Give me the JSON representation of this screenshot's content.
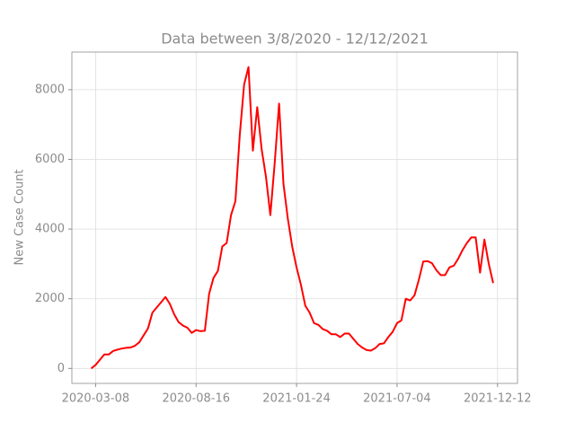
{
  "chart_data": {
    "type": "line",
    "title": "Data between 3/8/2020 - 12/12/2021",
    "y_label": "New Case Count",
    "x": [
      "2020-03-01",
      "2020-03-08",
      "2020-03-15",
      "2020-03-22",
      "2020-03-29",
      "2020-04-05",
      "2020-04-12",
      "2020-04-19",
      "2020-04-26",
      "2020-05-03",
      "2020-05-10",
      "2020-05-17",
      "2020-05-24",
      "2020-05-31",
      "2020-06-07",
      "2020-06-14",
      "2020-06-21",
      "2020-06-28",
      "2020-07-05",
      "2020-07-12",
      "2020-07-19",
      "2020-07-26",
      "2020-08-02",
      "2020-08-09",
      "2020-08-16",
      "2020-08-23",
      "2020-08-30",
      "2020-09-06",
      "2020-09-13",
      "2020-09-20",
      "2020-09-27",
      "2020-10-04",
      "2020-10-11",
      "2020-10-18",
      "2020-10-25",
      "2020-11-01",
      "2020-11-08",
      "2020-11-15",
      "2020-11-22",
      "2020-11-29",
      "2020-12-06",
      "2020-12-13",
      "2020-12-20",
      "2020-12-27",
      "2021-01-03",
      "2021-01-10",
      "2021-01-17",
      "2021-01-24",
      "2021-01-31",
      "2021-02-07",
      "2021-02-14",
      "2021-02-21",
      "2021-02-28",
      "2021-03-07",
      "2021-03-14",
      "2021-03-21",
      "2021-03-28",
      "2021-04-04",
      "2021-04-11",
      "2021-04-18",
      "2021-04-25",
      "2021-05-02",
      "2021-05-09",
      "2021-05-16",
      "2021-05-23",
      "2021-05-30",
      "2021-06-06",
      "2021-06-13",
      "2021-06-20",
      "2021-06-27",
      "2021-07-04",
      "2021-07-11",
      "2021-07-18",
      "2021-07-25",
      "2021-08-01",
      "2021-08-08",
      "2021-08-15",
      "2021-08-22",
      "2021-08-29",
      "2021-09-05",
      "2021-09-12",
      "2021-09-19",
      "2021-09-26",
      "2021-10-03",
      "2021-10-10",
      "2021-10-17",
      "2021-10-24",
      "2021-10-31",
      "2021-11-07",
      "2021-11-14",
      "2021-11-21",
      "2021-11-28",
      "2021-12-05"
    ],
    "series": [
      {
        "name": "New Case Count",
        "color": "#ff0000",
        "values": [
          0,
          100,
          250,
          400,
          400,
          500,
          540,
          570,
          590,
          600,
          650,
          750,
          950,
          1150,
          1600,
          1750,
          1900,
          2050,
          1850,
          1550,
          1330,
          1230,
          1170,
          1020,
          1100,
          1070,
          1080,
          2150,
          2600,
          2800,
          3500,
          3600,
          4400,
          4800,
          6700,
          8150,
          8650,
          6250,
          7500,
          6300,
          5500,
          4400,
          5900,
          7600,
          5300,
          4300,
          3500,
          2900,
          2400,
          1800,
          1600,
          1300,
          1250,
          1130,
          1080,
          980,
          980,
          900,
          1000,
          1000,
          850,
          700,
          600,
          530,
          510,
          580,
          700,
          720,
          900,
          1050,
          1300,
          1380,
          2000,
          1950,
          2100,
          2550,
          3070,
          3080,
          3020,
          2820,
          2680,
          2680,
          2900,
          2950,
          3150,
          3400,
          3600,
          3760,
          3760,
          2750,
          3700,
          3000,
          2450
        ]
      }
    ],
    "xlim": [
      "2020-01-30",
      "2022-01-13"
    ],
    "xticks": [
      "2020-03-08",
      "2020-08-16",
      "2021-01-24",
      "2021-07-04",
      "2021-12-12"
    ],
    "ylim": [
      -430,
      9080
    ],
    "yticks": [
      0,
      2000,
      4000,
      6000,
      8000
    ],
    "grid": true
  }
}
